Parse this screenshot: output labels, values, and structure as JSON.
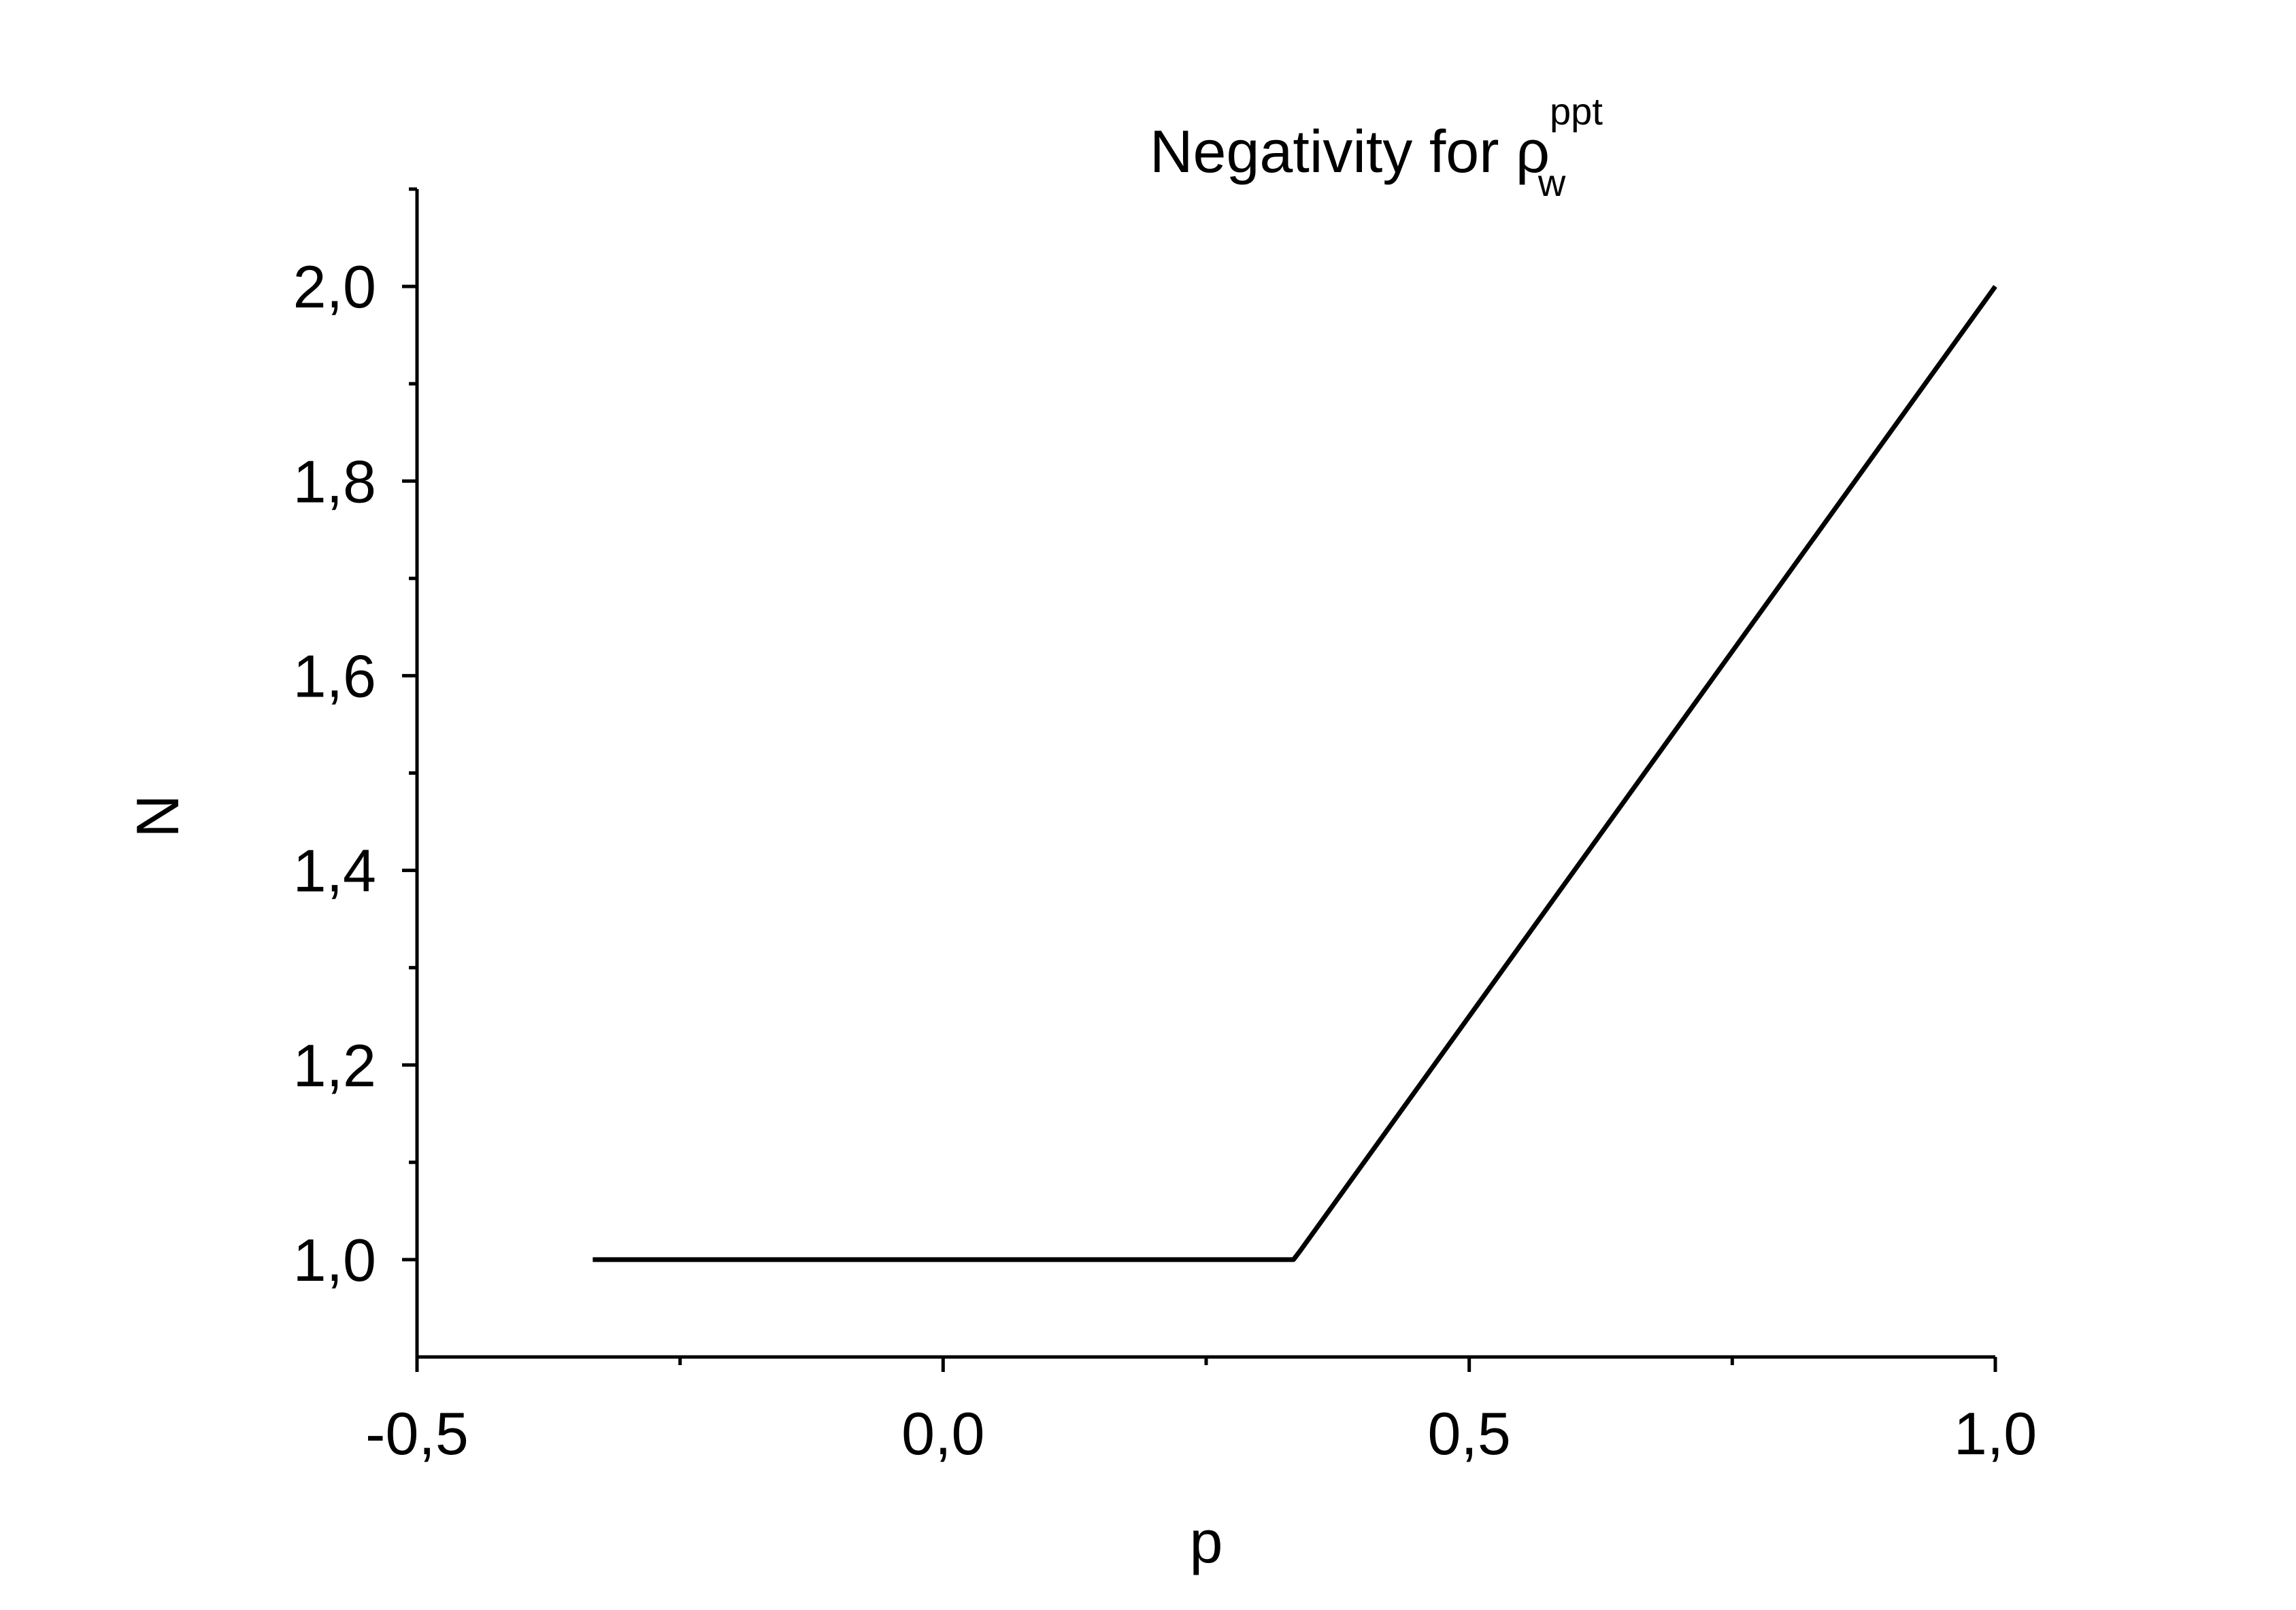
{
  "chart_data": {
    "type": "line",
    "title": {
      "main": "Negativity for ",
      "symbol": "ρ",
      "superscript": "ppt",
      "subscript": "w"
    },
    "xlabel": "p",
    "ylabel": "N",
    "xlim": [
      -0.5,
      1.0
    ],
    "ylim": [
      0.9,
      2.1
    ],
    "x_ticks": [
      -0.5,
      0.0,
      0.5,
      1.0
    ],
    "x_tick_labels": [
      "-0,5",
      "0,0",
      "0,5",
      "1,0"
    ],
    "x_minor_ticks": [
      -0.25,
      0.25,
      0.75
    ],
    "y_ticks": [
      1.0,
      1.2,
      1.4,
      1.6,
      1.8,
      2.0
    ],
    "y_tick_labels": [
      "1,0",
      "1,2",
      "1,4",
      "1,6",
      "1,8",
      "2,0"
    ],
    "y_minor_ticks": [
      1.1,
      1.3,
      1.5,
      1.7,
      1.9,
      2.1
    ],
    "grid": false,
    "legend": "none",
    "series": [
      {
        "color": "#000000",
        "x": [
          -0.333,
          0.325,
          0.333,
          0.34,
          1.0
        ],
        "y": [
          1.0,
          1.0,
          1.0,
          1.01,
          2.0
        ]
      }
    ]
  }
}
